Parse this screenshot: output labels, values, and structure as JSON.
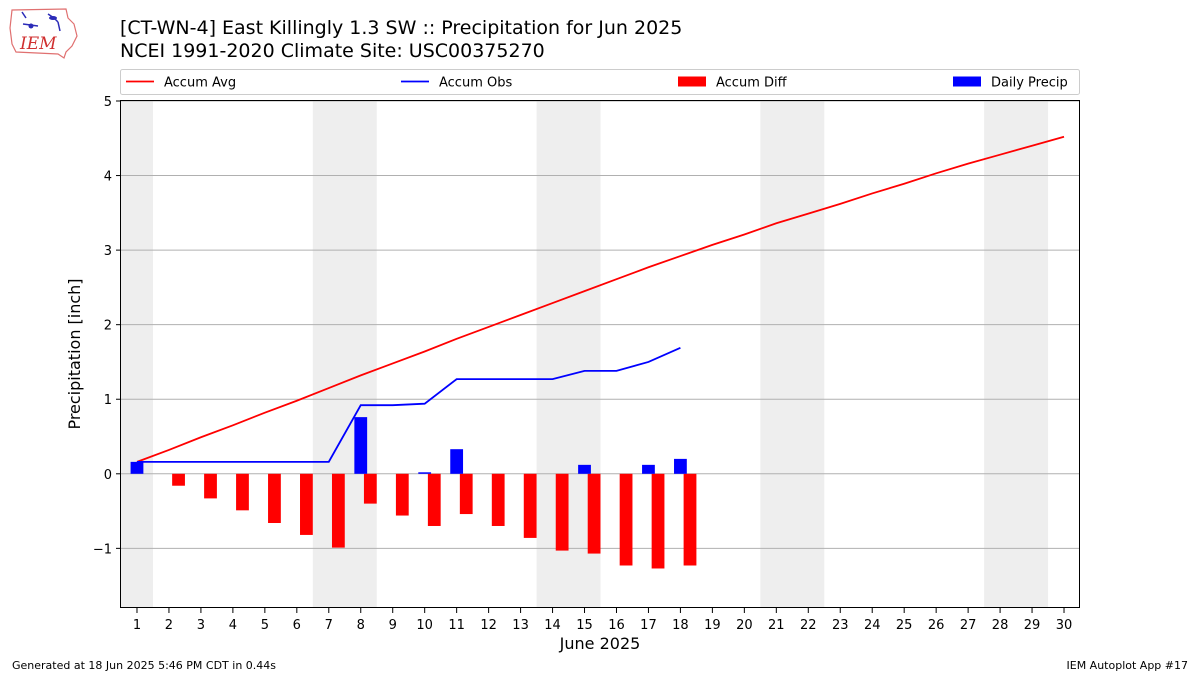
{
  "header": {
    "title": "[CT-WN-4] East Killingly 1.3 SW :: Precipitation for Jun 2025",
    "subtitle": "NCEI 1991-2020 Climate Site: USC00375270",
    "logo_text": "IEM"
  },
  "footer": {
    "generated": "Generated at 18 Jun 2025 5:46 PM CDT in 0.44s",
    "app": "IEM Autoplot App #17"
  },
  "colors": {
    "accum_avg": "#ff0000",
    "accum_obs": "#0000ff",
    "accum_diff": "#ff0000",
    "daily_precip": "#0000ff",
    "weekend_band": "#eeeeee",
    "grid": "#b0b0b0"
  },
  "chart_data": {
    "type": "bar",
    "xlabel": "June 2025",
    "ylabel": "Precipitation [inch]",
    "xlim": [
      0.5,
      30.5
    ],
    "ylim": [
      -1.8,
      5
    ],
    "grid": true,
    "legend_position": "top",
    "x_ticks": [
      "1",
      "2",
      "3",
      "4",
      "5",
      "6",
      "7",
      "8",
      "9",
      "10",
      "11",
      "12",
      "13",
      "14",
      "15",
      "16",
      "17",
      "18",
      "19",
      "20",
      "21",
      "22",
      "23",
      "24",
      "25",
      "26",
      "27",
      "28",
      "29",
      "30"
    ],
    "y_ticks": [
      {
        "value": -1,
        "label": "−1"
      },
      {
        "value": 0,
        "label": "0"
      },
      {
        "value": 1,
        "label": "1"
      },
      {
        "value": 2,
        "label": "2"
      },
      {
        "value": 3,
        "label": "3"
      },
      {
        "value": 4,
        "label": "4"
      },
      {
        "value": 5,
        "label": "5"
      }
    ],
    "weekend_bands": [
      [
        0.5,
        1.5
      ],
      [
        6.5,
        8.5
      ],
      [
        13.5,
        15.5
      ],
      [
        20.5,
        22.5
      ],
      [
        27.5,
        29.5
      ]
    ],
    "series": [
      {
        "name": "Accum Avg",
        "kind": "line",
        "x": [
          1,
          2,
          3,
          4,
          5,
          6,
          7,
          8,
          9,
          10,
          11,
          12,
          13,
          14,
          15,
          16,
          17,
          18,
          19,
          20,
          21,
          22,
          23,
          24,
          25,
          26,
          27,
          28,
          29,
          30
        ],
        "values": [
          0.16,
          0.32,
          0.49,
          0.65,
          0.82,
          0.98,
          1.15,
          1.32,
          1.48,
          1.64,
          1.81,
          1.97,
          2.13,
          2.29,
          2.45,
          2.61,
          2.77,
          2.92,
          3.07,
          3.21,
          3.36,
          3.49,
          3.62,
          3.76,
          3.89,
          4.03,
          4.16,
          4.28,
          4.4,
          4.52
        ]
      },
      {
        "name": "Accum Obs",
        "kind": "line",
        "x": [
          1,
          2,
          3,
          4,
          5,
          6,
          7,
          8,
          9,
          10,
          11,
          12,
          13,
          14,
          15,
          16,
          17,
          18
        ],
        "values": [
          0.16,
          0.16,
          0.16,
          0.16,
          0.16,
          0.16,
          0.16,
          0.92,
          0.92,
          0.94,
          1.27,
          1.27,
          1.27,
          1.27,
          1.38,
          1.38,
          1.5,
          1.69
        ]
      },
      {
        "name": "Accum Diff",
        "kind": "bar",
        "x": [
          1,
          2,
          3,
          4,
          5,
          6,
          7,
          8,
          9,
          10,
          11,
          12,
          13,
          14,
          15,
          16,
          17,
          18
        ],
        "values": [
          0.0,
          -0.16,
          -0.33,
          -0.49,
          -0.66,
          -0.82,
          -0.99,
          -0.4,
          -0.56,
          -0.7,
          -0.54,
          -0.7,
          -0.86,
          -1.03,
          -1.07,
          -1.23,
          -1.27,
          -1.23
        ]
      },
      {
        "name": "Daily Precip",
        "kind": "bar",
        "x": [
          1,
          2,
          3,
          4,
          5,
          6,
          7,
          8,
          9,
          10,
          11,
          12,
          13,
          14,
          15,
          16,
          17,
          18
        ],
        "values": [
          0.16,
          0,
          0,
          0,
          0,
          0,
          0,
          0.76,
          0,
          0.02,
          0.33,
          0,
          0,
          0,
          0.12,
          0,
          0.12,
          0.2
        ]
      }
    ]
  }
}
